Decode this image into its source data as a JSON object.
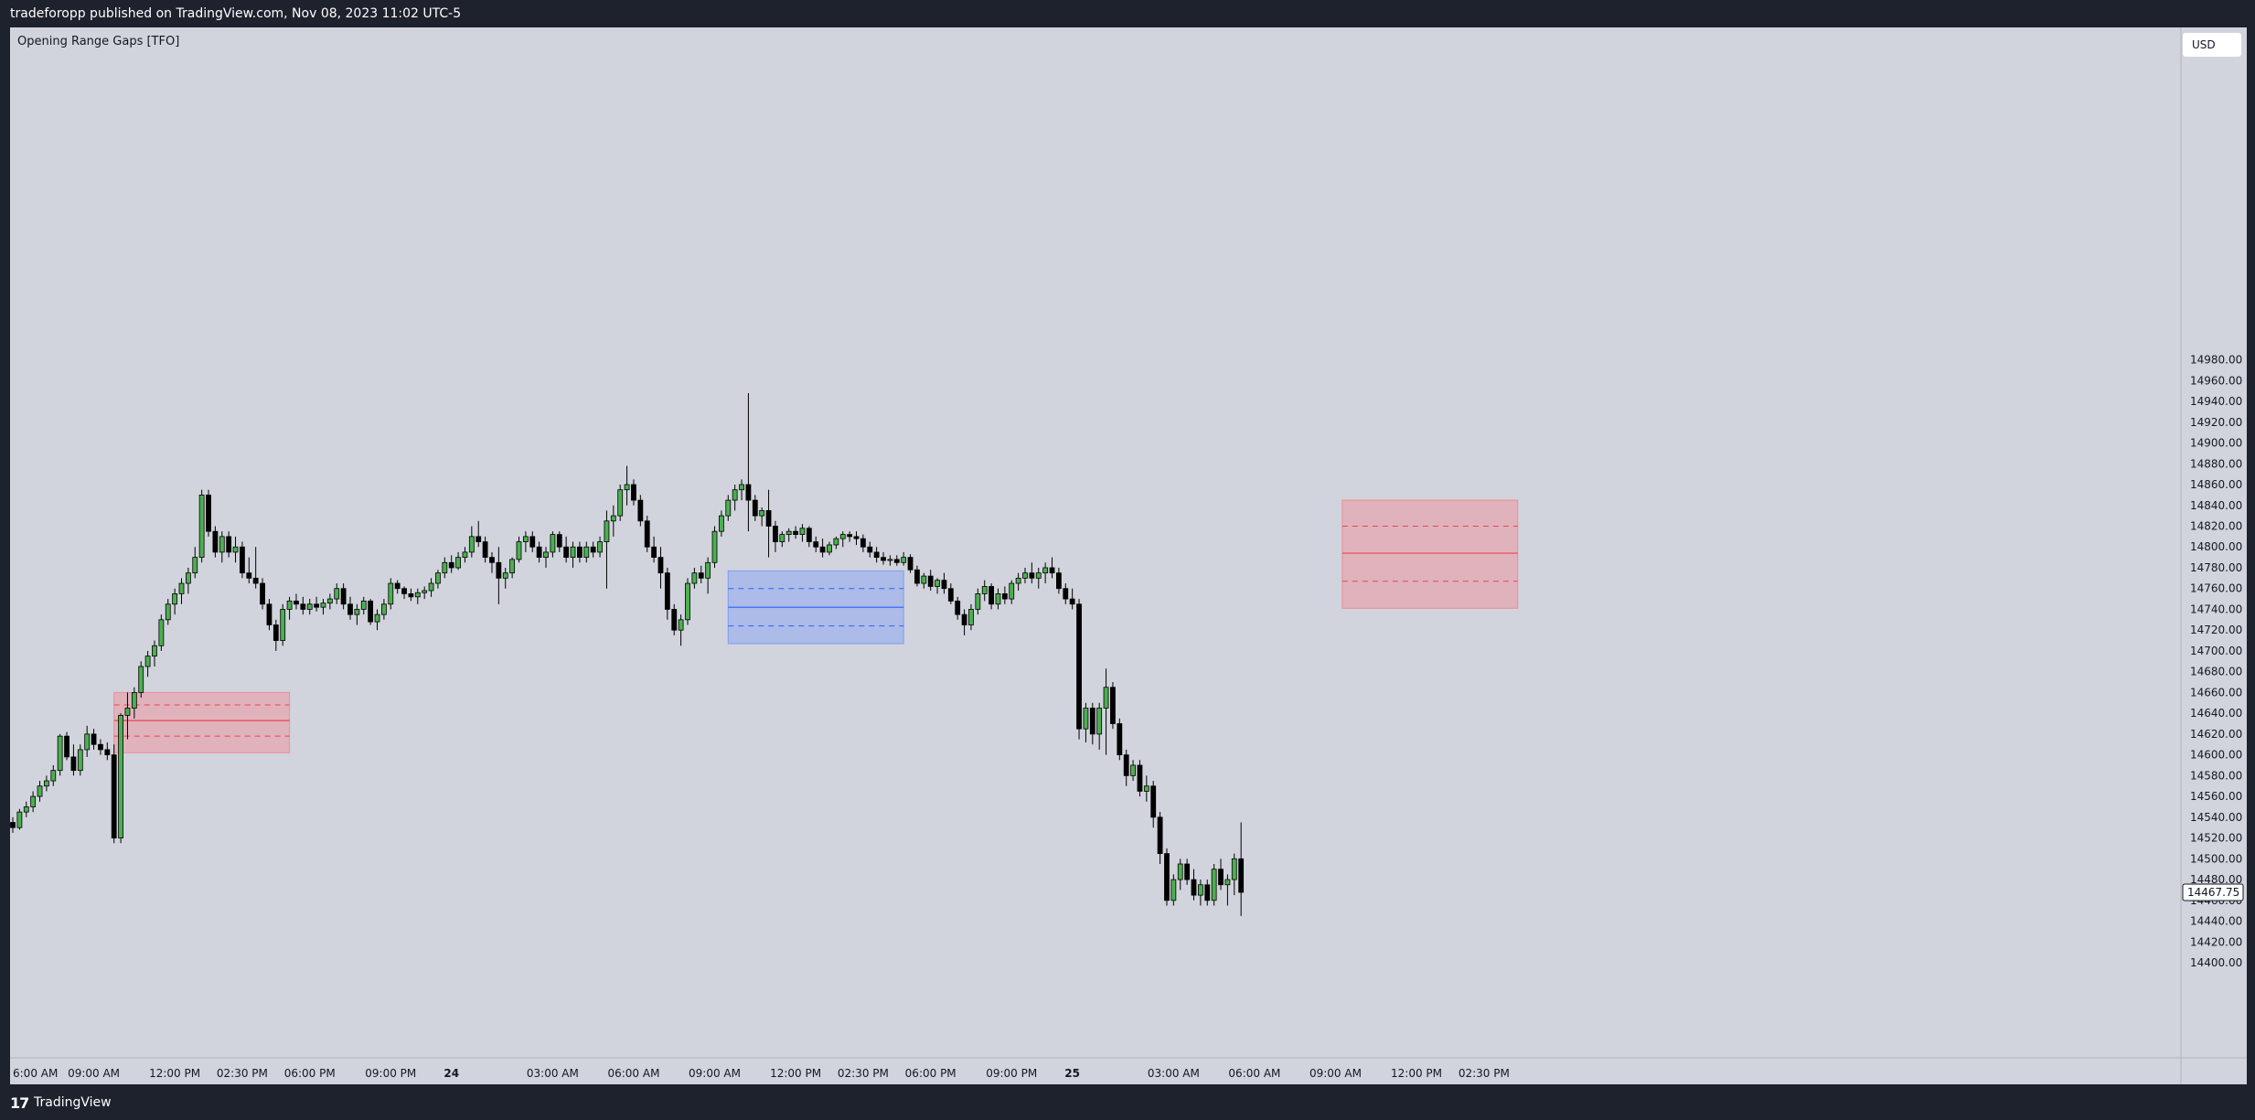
{
  "header": {
    "published_by": "tradeforopp published on TradingView.com, Nov 08, 2023 11:02 UTC-5"
  },
  "indicator": {
    "title": "Opening Range Gaps [TFO]"
  },
  "currency": {
    "label": "USD"
  },
  "brand": {
    "logo_mark": "17",
    "name": "TradingView"
  },
  "colors": {
    "background": "#d1d4dc",
    "up": "#4caf50",
    "down": "#000000",
    "gap_down_box": "#f28b95",
    "gap_up_box": "#7e9ef3",
    "red_line": "#e8444f",
    "blue_line": "#2962ff"
  },
  "chart_data": {
    "type": "candlestick",
    "title": "",
    "ylim": [
      14400,
      15000
    ],
    "y_ticks": [
      "14400.00",
      "14420.00",
      "14440.00",
      "14460.00",
      "14480.00",
      "14500.00",
      "14520.00",
      "14540.00",
      "14560.00",
      "14580.00",
      "14600.00",
      "14620.00",
      "14640.00",
      "14660.00",
      "14680.00",
      "14700.00",
      "14720.00",
      "14740.00",
      "14760.00",
      "14780.00",
      "14800.00",
      "14820.00",
      "14840.00",
      "14860.00",
      "14880.00",
      "14900.00",
      "14920.00",
      "14940.00",
      "14960.00",
      "14980.00"
    ],
    "x_ticks": [
      {
        "label": "6:00 AM",
        "bar": 0
      },
      {
        "label": "09:00 AM",
        "bar": 12
      },
      {
        "label": "12:00 PM",
        "bar": 24
      },
      {
        "label": "02:30 PM",
        "bar": 34
      },
      {
        "label": "06:00 PM",
        "bar": 44
      },
      {
        "label": "09:00 PM",
        "bar": 56
      },
      {
        "label": "24",
        "bar": 65
      },
      {
        "label": "03:00 AM",
        "bar": 80
      },
      {
        "label": "06:00 AM",
        "bar": 92
      },
      {
        "label": "09:00 AM",
        "bar": 104
      },
      {
        "label": "12:00 PM",
        "bar": 116
      },
      {
        "label": "02:30 PM",
        "bar": 126
      },
      {
        "label": "06:00 PM",
        "bar": 136
      },
      {
        "label": "09:00 PM",
        "bar": 148
      },
      {
        "label": "25",
        "bar": 157
      },
      {
        "label": "03:00 AM",
        "bar": 172
      },
      {
        "label": "06:00 AM",
        "bar": 184
      },
      {
        "label": "09:00 AM",
        "bar": 196
      },
      {
        "label": "12:00 PM",
        "bar": 208
      },
      {
        "label": "02:30 PM",
        "bar": 218
      }
    ],
    "last_price": "14467.75",
    "gap_zones": [
      {
        "kind": "down",
        "start_bar": 15,
        "end_bar": 41,
        "top": 14660,
        "bottom": 14602,
        "mid": 14633,
        "q_upper": 14648,
        "q_lower": 14618
      },
      {
        "kind": "up",
        "start_bar": 106,
        "end_bar": 132,
        "top": 14777,
        "bottom": 14707,
        "mid": 14742,
        "q_upper": 14760,
        "q_lower": 14724
      },
      {
        "kind": "down",
        "start_bar": 197,
        "end_bar": 223,
        "top": 14845,
        "bottom": 14741,
        "mid": 14794,
        "q_upper": 14820,
        "q_lower": 14767
      }
    ],
    "candles": [
      [
        14535,
        14540,
        14525,
        14530
      ],
      [
        14530,
        14548,
        14528,
        14545
      ],
      [
        14545,
        14555,
        14540,
        14550
      ],
      [
        14550,
        14565,
        14545,
        14560
      ],
      [
        14560,
        14575,
        14555,
        14570
      ],
      [
        14570,
        14580,
        14565,
        14575
      ],
      [
        14575,
        14590,
        14570,
        14585
      ],
      [
        14585,
        14620,
        14580,
        14618
      ],
      [
        14618,
        14622,
        14595,
        14598
      ],
      [
        14598,
        14610,
        14580,
        14585
      ],
      [
        14585,
        14610,
        14580,
        14605
      ],
      [
        14605,
        14628,
        14598,
        14620
      ],
      [
        14620,
        14625,
        14605,
        14610
      ],
      [
        14610,
        14615,
        14600,
        14605
      ],
      [
        14605,
        14612,
        14595,
        14600
      ],
      [
        14600,
        14610,
        14515,
        14520
      ],
      [
        14520,
        14640,
        14515,
        14638
      ],
      [
        14638,
        14660,
        14615,
        14645
      ],
      [
        14645,
        14665,
        14635,
        14660
      ],
      [
        14660,
        14690,
        14655,
        14685
      ],
      [
        14685,
        14700,
        14675,
        14695
      ],
      [
        14695,
        14710,
        14685,
        14705
      ],
      [
        14705,
        14735,
        14700,
        14730
      ],
      [
        14730,
        14750,
        14725,
        14745
      ],
      [
        14745,
        14760,
        14735,
        14755
      ],
      [
        14755,
        14770,
        14745,
        14765
      ],
      [
        14765,
        14780,
        14755,
        14775
      ],
      [
        14775,
        14800,
        14770,
        14790
      ],
      [
        14790,
        14855,
        14785,
        14850
      ],
      [
        14850,
        14855,
        14810,
        14815
      ],
      [
        14815,
        14820,
        14790,
        14795
      ],
      [
        14795,
        14815,
        14785,
        14810
      ],
      [
        14810,
        14815,
        14790,
        14795
      ],
      [
        14795,
        14810,
        14785,
        14800
      ],
      [
        14800,
        14805,
        14770,
        14775
      ],
      [
        14775,
        14790,
        14765,
        14770
      ],
      [
        14770,
        14800,
        14760,
        14765
      ],
      [
        14765,
        14770,
        14740,
        14745
      ],
      [
        14745,
        14750,
        14720,
        14725
      ],
      [
        14725,
        14730,
        14700,
        14710
      ],
      [
        14710,
        14745,
        14705,
        14740
      ],
      [
        14740,
        14752,
        14730,
        14748
      ],
      [
        14748,
        14755,
        14740,
        14745
      ],
      [
        14745,
        14752,
        14735,
        14740
      ],
      [
        14740,
        14750,
        14735,
        14745
      ],
      [
        14745,
        14752,
        14738,
        14742
      ],
      [
        14742,
        14750,
        14735,
        14746
      ],
      [
        14746,
        14755,
        14740,
        14750
      ],
      [
        14750,
        14765,
        14745,
        14760
      ],
      [
        14760,
        14765,
        14740,
        14745
      ],
      [
        14745,
        14752,
        14730,
        14735
      ],
      [
        14735,
        14745,
        14725,
        14740
      ],
      [
        14740,
        14752,
        14735,
        14748
      ],
      [
        14748,
        14750,
        14725,
        14728
      ],
      [
        14728,
        14740,
        14720,
        14735
      ],
      [
        14735,
        14750,
        14730,
        14745
      ],
      [
        14745,
        14770,
        14740,
        14765
      ],
      [
        14765,
        14768,
        14755,
        14760
      ],
      [
        14760,
        14762,
        14750,
        14755
      ],
      [
        14755,
        14760,
        14748,
        14752
      ],
      [
        14752,
        14760,
        14745,
        14756
      ],
      [
        14756,
        14762,
        14750,
        14758
      ],
      [
        14758,
        14770,
        14752,
        14765
      ],
      [
        14765,
        14778,
        14760,
        14775
      ],
      [
        14775,
        14790,
        14770,
        14785
      ],
      [
        14785,
        14792,
        14775,
        14780
      ],
      [
        14780,
        14795,
        14778,
        14790
      ],
      [
        14790,
        14800,
        14785,
        14795
      ],
      [
        14795,
        14820,
        14790,
        14810
      ],
      [
        14810,
        14825,
        14800,
        14805
      ],
      [
        14805,
        14810,
        14785,
        14790
      ],
      [
        14790,
        14795,
        14775,
        14785
      ],
      [
        14785,
        14800,
        14745,
        14770
      ],
      [
        14770,
        14780,
        14760,
        14775
      ],
      [
        14775,
        14790,
        14770,
        14788
      ],
      [
        14788,
        14810,
        14785,
        14805
      ],
      [
        14805,
        14815,
        14795,
        14810
      ],
      [
        14810,
        14815,
        14795,
        14800
      ],
      [
        14800,
        14805,
        14785,
        14790
      ],
      [
        14790,
        14800,
        14780,
        14795
      ],
      [
        14795,
        14815,
        14790,
        14812
      ],
      [
        14812,
        14815,
        14795,
        14800
      ],
      [
        14800,
        14810,
        14785,
        14790
      ],
      [
        14790,
        14805,
        14780,
        14800
      ],
      [
        14800,
        14805,
        14785,
        14790
      ],
      [
        14790,
        14805,
        14785,
        14800
      ],
      [
        14800,
        14805,
        14790,
        14795
      ],
      [
        14795,
        14810,
        14790,
        14805
      ],
      [
        14805,
        14835,
        14760,
        14825
      ],
      [
        14825,
        14840,
        14810,
        14830
      ],
      [
        14830,
        14860,
        14825,
        14855
      ],
      [
        14855,
        14878,
        14840,
        14860
      ],
      [
        14860,
        14865,
        14840,
        14845
      ],
      [
        14845,
        14850,
        14820,
        14825
      ],
      [
        14825,
        14830,
        14795,
        14800
      ],
      [
        14800,
        14810,
        14785,
        14790
      ],
      [
        14790,
        14800,
        14760,
        14775
      ],
      [
        14775,
        14780,
        14730,
        14740
      ],
      [
        14740,
        14745,
        14715,
        14720
      ],
      [
        14720,
        14735,
        14705,
        14730
      ],
      [
        14730,
        14770,
        14725,
        14765
      ],
      [
        14765,
        14780,
        14760,
        14775
      ],
      [
        14775,
        14782,
        14765,
        14770
      ],
      [
        14770,
        14790,
        14755,
        14785
      ],
      [
        14785,
        14820,
        14780,
        14815
      ],
      [
        14815,
        14835,
        14810,
        14830
      ],
      [
        14830,
        14850,
        14825,
        14845
      ],
      [
        14845,
        14860,
        14835,
        14855
      ],
      [
        14855,
        14865,
        14845,
        14860
      ],
      [
        14860,
        14948,
        14815,
        14845
      ],
      [
        14845,
        14850,
        14825,
        14830
      ],
      [
        14830,
        14838,
        14820,
        14835
      ]
    ],
    "candles_tail": [
      [
        14835,
        14855,
        14790,
        14820
      ],
      [
        14820,
        14825,
        14795,
        14805
      ],
      [
        14805,
        14815,
        14800,
        14812
      ],
      [
        14812,
        14818,
        14805,
        14815
      ],
      [
        14815,
        14820,
        14808,
        14812
      ],
      [
        14812,
        14822,
        14805,
        14818
      ],
      [
        14818,
        14820,
        14800,
        14805
      ],
      [
        14805,
        14810,
        14795,
        14800
      ],
      [
        14800,
        14808,
        14790,
        14795
      ],
      [
        14795,
        14805,
        14792,
        14802
      ],
      [
        14802,
        14810,
        14798,
        14808
      ],
      [
        14808,
        14815,
        14800,
        14812
      ],
      [
        14812,
        14815,
        14805,
        14810
      ],
      [
        14810,
        14815,
        14802,
        14808
      ],
      [
        14808,
        14812,
        14795,
        14800
      ],
      [
        14800,
        14805,
        14790,
        14795
      ],
      [
        14795,
        14800,
        14785,
        14790
      ],
      [
        14790,
        14795,
        14783,
        14787
      ],
      [
        14787,
        14792,
        14782,
        14788
      ],
      [
        14788,
        14792,
        14782,
        14785
      ],
      [
        14785,
        14795,
        14782,
        14790
      ],
      [
        14790,
        14793,
        14775,
        14778
      ],
      [
        14778,
        14782,
        14762,
        14765
      ],
      [
        14765,
        14775,
        14760,
        14772
      ],
      [
        14772,
        14778,
        14758,
        14762
      ],
      [
        14762,
        14770,
        14755,
        14768
      ],
      [
        14768,
        14775,
        14755,
        14760
      ],
      [
        14760,
        14765,
        14745,
        14748
      ],
      [
        14748,
        14752,
        14730,
        14735
      ],
      [
        14735,
        14740,
        14715,
        14725
      ],
      [
        14725,
        14745,
        14720,
        14740
      ],
      [
        14740,
        14760,
        14735,
        14755
      ],
      [
        14755,
        14768,
        14748,
        14762
      ],
      [
        14762,
        14765,
        14740,
        14745
      ],
      [
        14745,
        14760,
        14740,
        14755
      ],
      [
        14755,
        14762,
        14745,
        14750
      ],
      [
        14750,
        14768,
        14745,
        14765
      ],
      [
        14765,
        14775,
        14758,
        14770
      ],
      [
        14770,
        14780,
        14765,
        14775
      ],
      [
        14775,
        14785,
        14765,
        14770
      ],
      [
        14770,
        14780,
        14760,
        14775
      ],
      [
        14775,
        14785,
        14765,
        14780
      ],
      [
        14780,
        14790,
        14770,
        14775
      ],
      [
        14775,
        14780,
        14755,
        14760
      ],
      [
        14760,
        14765,
        14745,
        14750
      ],
      [
        14750,
        14760,
        14740,
        14745
      ],
      [
        14745,
        14750,
        14615,
        14625
      ],
      [
        14625,
        14650,
        14612,
        14645
      ],
      [
        14645,
        14650,
        14610,
        14620
      ],
      [
        14620,
        14650,
        14605,
        14645
      ],
      [
        14645,
        14683,
        14600,
        14665
      ],
      [
        14665,
        14670,
        14625,
        14630
      ],
      [
        14630,
        14635,
        14595,
        14600
      ],
      [
        14600,
        14605,
        14570,
        14580
      ],
      [
        14580,
        14595,
        14575,
        14590
      ],
      [
        14590,
        14595,
        14560,
        14565
      ],
      [
        14565,
        14580,
        14555,
        14570
      ],
      [
        14570,
        14575,
        14530,
        14540
      ],
      [
        14540,
        14545,
        14495,
        14505
      ],
      [
        14505,
        14510,
        14455,
        14460
      ],
      [
        14460,
        14485,
        14455,
        14480
      ],
      [
        14480,
        14500,
        14470,
        14495
      ],
      [
        14495,
        14500,
        14475,
        14480
      ],
      [
        14480,
        14490,
        14460,
        14465
      ],
      [
        14465,
        14480,
        14455,
        14475
      ],
      [
        14475,
        14480,
        14455,
        14460
      ],
      [
        14460,
        14495,
        14455,
        14490
      ],
      [
        14490,
        14500,
        14470,
        14475
      ],
      [
        14475,
        14485,
        14455,
        14480
      ],
      [
        14480,
        14505,
        14465,
        14500
      ],
      [
        14500,
        14535,
        14445,
        14467.75
      ]
    ]
  }
}
